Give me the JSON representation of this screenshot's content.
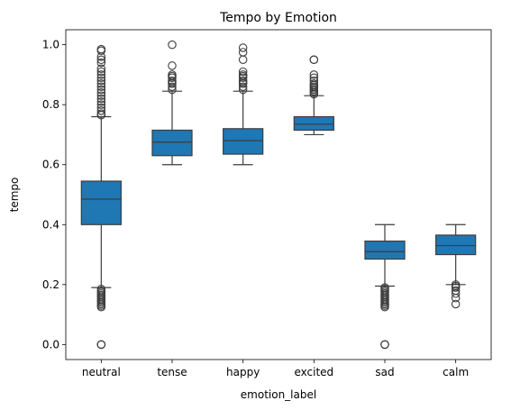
{
  "chart_data": {
    "type": "box",
    "title": "Tempo by Emotion",
    "xlabel": "emotion_label",
    "ylabel": "tempo",
    "ylim": [
      -0.05,
      1.05
    ],
    "yticks": [
      0.0,
      0.2,
      0.4,
      0.6,
      0.8,
      1.0
    ],
    "ytick_labels": [
      "0.0",
      "0.2",
      "0.4",
      "0.6",
      "0.8",
      "1.0"
    ],
    "grid": false,
    "box_color": "#1f77b4",
    "edge_color": "#3d3d3d",
    "categories": [
      "neutral",
      "tense",
      "happy",
      "excited",
      "sad",
      "calm"
    ],
    "boxes": [
      {
        "label": "neutral",
        "whislo": 0.19,
        "q1": 0.4,
        "median": 0.485,
        "q3": 0.545,
        "whishi": 0.76,
        "fliers": [
          0.0,
          0.0,
          0.0,
          0.125,
          0.13,
          0.135,
          0.14,
          0.145,
          0.15,
          0.155,
          0.16,
          0.165,
          0.17,
          0.175,
          0.18,
          0.185,
          0.765,
          0.77,
          0.78,
          0.79,
          0.8,
          0.81,
          0.82,
          0.83,
          0.84,
          0.85,
          0.86,
          0.87,
          0.88,
          0.89,
          0.9,
          0.91,
          0.92,
          0.94,
          0.95,
          0.96,
          0.98,
          0.985
        ]
      },
      {
        "label": "tense",
        "whislo": 0.6,
        "q1": 0.63,
        "median": 0.675,
        "q3": 0.715,
        "whishi": 0.845,
        "fliers": [
          0.85,
          0.86,
          0.87,
          0.875,
          0.88,
          0.89,
          0.895,
          0.9,
          0.93,
          1.0
        ]
      },
      {
        "label": "happy",
        "whislo": 0.6,
        "q1": 0.635,
        "median": 0.68,
        "q3": 0.72,
        "whishi": 0.845,
        "fliers": [
          0.85,
          0.86,
          0.87,
          0.875,
          0.88,
          0.89,
          0.895,
          0.9,
          0.91,
          0.95,
          0.975,
          0.99
        ]
      },
      {
        "label": "excited",
        "whislo": 0.7,
        "q1": 0.715,
        "median": 0.735,
        "q3": 0.76,
        "whishi": 0.83,
        "fliers": [
          0.835,
          0.84,
          0.845,
          0.85,
          0.855,
          0.86,
          0.865,
          0.87,
          0.88,
          0.89,
          0.9,
          0.95,
          0.95
        ]
      },
      {
        "label": "sad",
        "whislo": 0.195,
        "q1": 0.285,
        "median": 0.31,
        "q3": 0.345,
        "whishi": 0.4,
        "fliers": [
          0.0,
          0.0,
          0.0,
          0.125,
          0.13,
          0.135,
          0.14,
          0.145,
          0.15,
          0.155,
          0.16,
          0.165,
          0.17,
          0.175,
          0.18,
          0.185,
          0.19
        ]
      },
      {
        "label": "calm",
        "whislo": 0.2,
        "q1": 0.3,
        "median": 0.33,
        "q3": 0.365,
        "whishi": 0.4,
        "fliers": [
          0.135,
          0.155,
          0.17,
          0.18,
          0.19,
          0.195,
          0.2
        ]
      }
    ]
  }
}
